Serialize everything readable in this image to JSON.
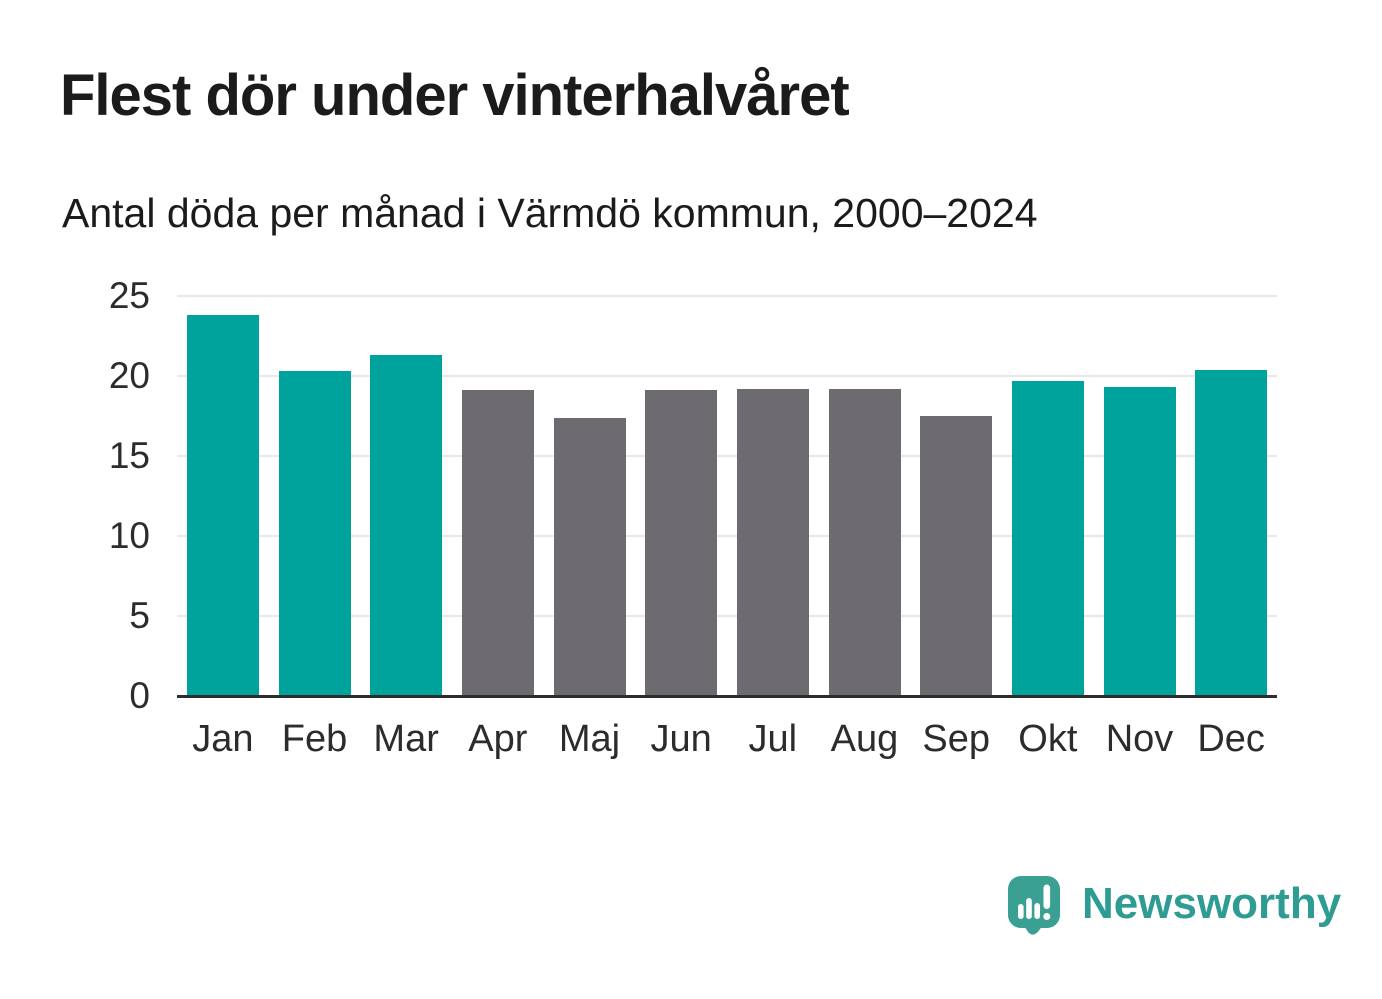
{
  "chart_data": {
    "type": "bar",
    "title": "Flest dör under vinterhalvåret",
    "subtitle": "Antal döda per månad i Värmdö kommun, 2000–2024",
    "categories": [
      "Jan",
      "Feb",
      "Mar",
      "Apr",
      "Maj",
      "Jun",
      "Jul",
      "Aug",
      "Sep",
      "Okt",
      "Nov",
      "Dec"
    ],
    "values": [
      23.8,
      20.3,
      21.3,
      19.1,
      17.4,
      19.1,
      19.2,
      19.2,
      17.5,
      19.7,
      19.3,
      20.4
    ],
    "highlighted_categories": [
      "Jan",
      "Feb",
      "Mar",
      "Okt",
      "Nov",
      "Dec"
    ],
    "xlabel": "",
    "ylabel": "",
    "ylim": [
      0,
      25
    ],
    "yticks": [
      0,
      5,
      10,
      15,
      20,
      25
    ],
    "grid": "horizontal",
    "legend": "none"
  },
  "footer": {
    "brand": "Newsworthy",
    "logo_icon": "speech-bubble-bar-chart-icon"
  },
  "colors": {
    "highlight_bar": "#00A39B",
    "default_bar": "#6D6A70",
    "grid_line": "#E8E8E8",
    "axis_line": "#2D2D2D",
    "title_text": "#1B1B1B",
    "tick_text": "#2C2C2C",
    "brand": "#2F9C94",
    "logo_bubble": "#3BA094"
  }
}
